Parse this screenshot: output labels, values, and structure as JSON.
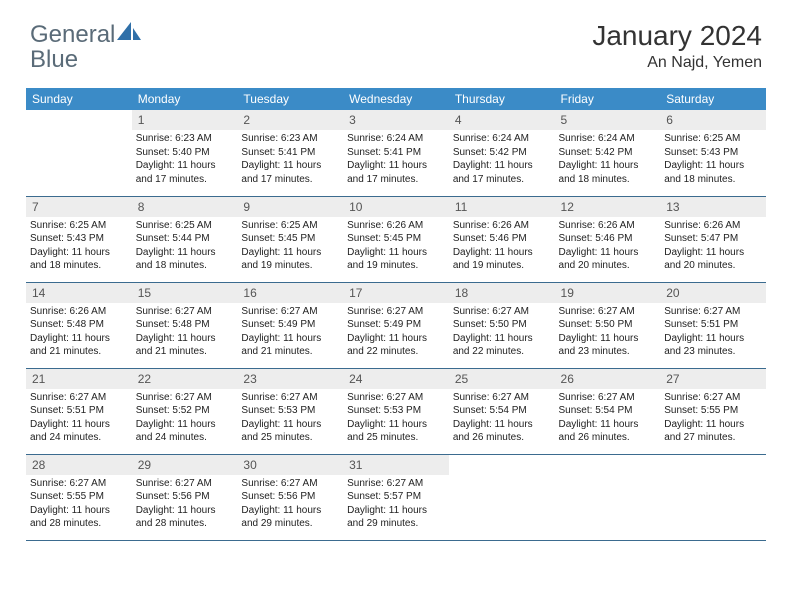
{
  "brand": {
    "name_part1": "General",
    "name_part2": "Blue"
  },
  "title": "January 2024",
  "location": "An Najd, Yemen",
  "colors": {
    "header_bg": "#3b8bc7",
    "daynum_bg": "#ededed",
    "row_border": "#3b6b8f",
    "logo_text": "#5a6b78",
    "logo_accent": "#2f6fa8"
  },
  "weekdays": [
    "Sunday",
    "Monday",
    "Tuesday",
    "Wednesday",
    "Thursday",
    "Friday",
    "Saturday"
  ],
  "weeks": [
    [
      {
        "day": "",
        "sunrise": "",
        "sunset": "",
        "daylight": ""
      },
      {
        "day": "1",
        "sunrise": "Sunrise: 6:23 AM",
        "sunset": "Sunset: 5:40 PM",
        "daylight": "Daylight: 11 hours and 17 minutes."
      },
      {
        "day": "2",
        "sunrise": "Sunrise: 6:23 AM",
        "sunset": "Sunset: 5:41 PM",
        "daylight": "Daylight: 11 hours and 17 minutes."
      },
      {
        "day": "3",
        "sunrise": "Sunrise: 6:24 AM",
        "sunset": "Sunset: 5:41 PM",
        "daylight": "Daylight: 11 hours and 17 minutes."
      },
      {
        "day": "4",
        "sunrise": "Sunrise: 6:24 AM",
        "sunset": "Sunset: 5:42 PM",
        "daylight": "Daylight: 11 hours and 17 minutes."
      },
      {
        "day": "5",
        "sunrise": "Sunrise: 6:24 AM",
        "sunset": "Sunset: 5:42 PM",
        "daylight": "Daylight: 11 hours and 18 minutes."
      },
      {
        "day": "6",
        "sunrise": "Sunrise: 6:25 AM",
        "sunset": "Sunset: 5:43 PM",
        "daylight": "Daylight: 11 hours and 18 minutes."
      }
    ],
    [
      {
        "day": "7",
        "sunrise": "Sunrise: 6:25 AM",
        "sunset": "Sunset: 5:43 PM",
        "daylight": "Daylight: 11 hours and 18 minutes."
      },
      {
        "day": "8",
        "sunrise": "Sunrise: 6:25 AM",
        "sunset": "Sunset: 5:44 PM",
        "daylight": "Daylight: 11 hours and 18 minutes."
      },
      {
        "day": "9",
        "sunrise": "Sunrise: 6:25 AM",
        "sunset": "Sunset: 5:45 PM",
        "daylight": "Daylight: 11 hours and 19 minutes."
      },
      {
        "day": "10",
        "sunrise": "Sunrise: 6:26 AM",
        "sunset": "Sunset: 5:45 PM",
        "daylight": "Daylight: 11 hours and 19 minutes."
      },
      {
        "day": "11",
        "sunrise": "Sunrise: 6:26 AM",
        "sunset": "Sunset: 5:46 PM",
        "daylight": "Daylight: 11 hours and 19 minutes."
      },
      {
        "day": "12",
        "sunrise": "Sunrise: 6:26 AM",
        "sunset": "Sunset: 5:46 PM",
        "daylight": "Daylight: 11 hours and 20 minutes."
      },
      {
        "day": "13",
        "sunrise": "Sunrise: 6:26 AM",
        "sunset": "Sunset: 5:47 PM",
        "daylight": "Daylight: 11 hours and 20 minutes."
      }
    ],
    [
      {
        "day": "14",
        "sunrise": "Sunrise: 6:26 AM",
        "sunset": "Sunset: 5:48 PM",
        "daylight": "Daylight: 11 hours and 21 minutes."
      },
      {
        "day": "15",
        "sunrise": "Sunrise: 6:27 AM",
        "sunset": "Sunset: 5:48 PM",
        "daylight": "Daylight: 11 hours and 21 minutes."
      },
      {
        "day": "16",
        "sunrise": "Sunrise: 6:27 AM",
        "sunset": "Sunset: 5:49 PM",
        "daylight": "Daylight: 11 hours and 21 minutes."
      },
      {
        "day": "17",
        "sunrise": "Sunrise: 6:27 AM",
        "sunset": "Sunset: 5:49 PM",
        "daylight": "Daylight: 11 hours and 22 minutes."
      },
      {
        "day": "18",
        "sunrise": "Sunrise: 6:27 AM",
        "sunset": "Sunset: 5:50 PM",
        "daylight": "Daylight: 11 hours and 22 minutes."
      },
      {
        "day": "19",
        "sunrise": "Sunrise: 6:27 AM",
        "sunset": "Sunset: 5:50 PM",
        "daylight": "Daylight: 11 hours and 23 minutes."
      },
      {
        "day": "20",
        "sunrise": "Sunrise: 6:27 AM",
        "sunset": "Sunset: 5:51 PM",
        "daylight": "Daylight: 11 hours and 23 minutes."
      }
    ],
    [
      {
        "day": "21",
        "sunrise": "Sunrise: 6:27 AM",
        "sunset": "Sunset: 5:51 PM",
        "daylight": "Daylight: 11 hours and 24 minutes."
      },
      {
        "day": "22",
        "sunrise": "Sunrise: 6:27 AM",
        "sunset": "Sunset: 5:52 PM",
        "daylight": "Daylight: 11 hours and 24 minutes."
      },
      {
        "day": "23",
        "sunrise": "Sunrise: 6:27 AM",
        "sunset": "Sunset: 5:53 PM",
        "daylight": "Daylight: 11 hours and 25 minutes."
      },
      {
        "day": "24",
        "sunrise": "Sunrise: 6:27 AM",
        "sunset": "Sunset: 5:53 PM",
        "daylight": "Daylight: 11 hours and 25 minutes."
      },
      {
        "day": "25",
        "sunrise": "Sunrise: 6:27 AM",
        "sunset": "Sunset: 5:54 PM",
        "daylight": "Daylight: 11 hours and 26 minutes."
      },
      {
        "day": "26",
        "sunrise": "Sunrise: 6:27 AM",
        "sunset": "Sunset: 5:54 PM",
        "daylight": "Daylight: 11 hours and 26 minutes."
      },
      {
        "day": "27",
        "sunrise": "Sunrise: 6:27 AM",
        "sunset": "Sunset: 5:55 PM",
        "daylight": "Daylight: 11 hours and 27 minutes."
      }
    ],
    [
      {
        "day": "28",
        "sunrise": "Sunrise: 6:27 AM",
        "sunset": "Sunset: 5:55 PM",
        "daylight": "Daylight: 11 hours and 28 minutes."
      },
      {
        "day": "29",
        "sunrise": "Sunrise: 6:27 AM",
        "sunset": "Sunset: 5:56 PM",
        "daylight": "Daylight: 11 hours and 28 minutes."
      },
      {
        "day": "30",
        "sunrise": "Sunrise: 6:27 AM",
        "sunset": "Sunset: 5:56 PM",
        "daylight": "Daylight: 11 hours and 29 minutes."
      },
      {
        "day": "31",
        "sunrise": "Sunrise: 6:27 AM",
        "sunset": "Sunset: 5:57 PM",
        "daylight": "Daylight: 11 hours and 29 minutes."
      },
      {
        "day": "",
        "sunrise": "",
        "sunset": "",
        "daylight": ""
      },
      {
        "day": "",
        "sunrise": "",
        "sunset": "",
        "daylight": ""
      },
      {
        "day": "",
        "sunrise": "",
        "sunset": "",
        "daylight": ""
      }
    ]
  ]
}
